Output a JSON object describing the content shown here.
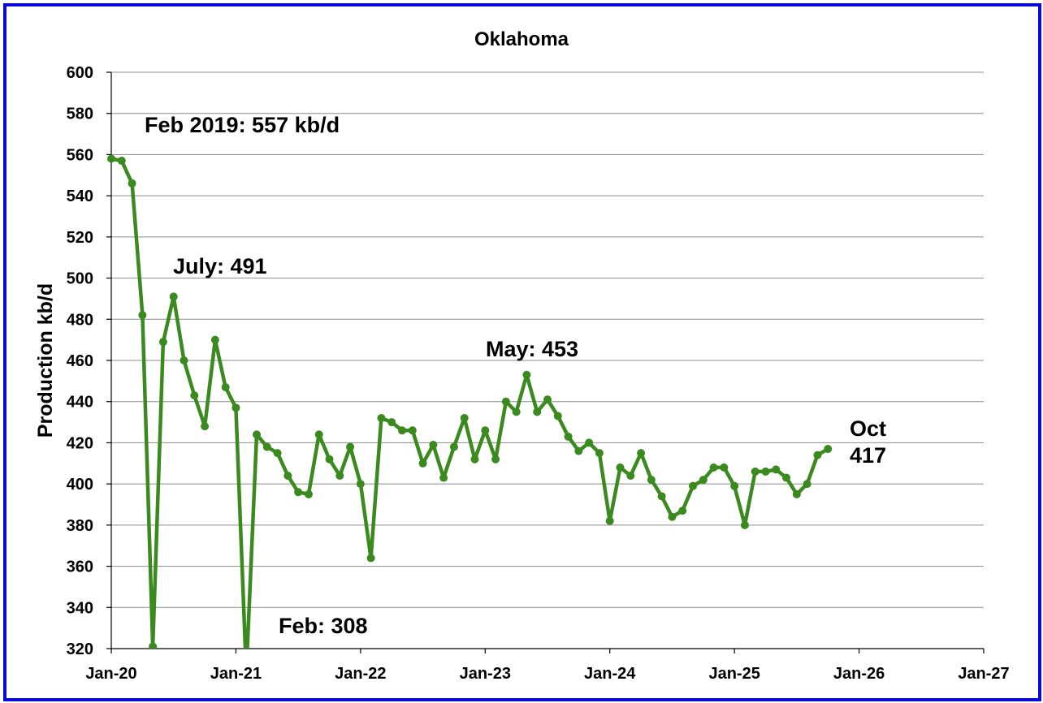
{
  "chart_data": {
    "type": "line",
    "title": "Oklahoma",
    "ylabel": "Production kb/d",
    "xlabel": "",
    "ylim": [
      320,
      600
    ],
    "yticks": [
      320,
      340,
      360,
      380,
      400,
      420,
      440,
      460,
      480,
      500,
      520,
      540,
      560,
      580,
      600
    ],
    "xlim": [
      "2020-01",
      "2027-01"
    ],
    "xticks": [
      {
        "date": "2020-01",
        "label": "Jan-20"
      },
      {
        "date": "2021-01",
        "label": "Jan-21"
      },
      {
        "date": "2022-01",
        "label": "Jan-22"
      },
      {
        "date": "2023-01",
        "label": "Jan-23"
      },
      {
        "date": "2024-01",
        "label": "Jan-24"
      },
      {
        "date": "2025-01",
        "label": "Jan-25"
      },
      {
        "date": "2026-01",
        "label": "Jan-26"
      },
      {
        "date": "2027-01",
        "label": "Jan-27"
      }
    ],
    "grid": "horizontal",
    "line_color": "#3a8a1f",
    "series": [
      {
        "x": [
          "2020-01",
          "2020-02",
          "2020-03",
          "2020-04",
          "2020-05",
          "2020-06",
          "2020-07",
          "2020-08",
          "2020-09",
          "2020-10",
          "2020-11",
          "2020-12",
          "2021-01",
          "2021-02",
          "2021-03",
          "2021-04",
          "2021-05",
          "2021-06",
          "2021-07",
          "2021-08",
          "2021-09",
          "2021-10",
          "2021-11",
          "2021-12",
          "2022-01",
          "2022-02",
          "2022-03",
          "2022-04",
          "2022-05",
          "2022-06",
          "2022-07",
          "2022-08",
          "2022-09",
          "2022-10",
          "2022-11",
          "2022-12",
          "2023-01",
          "2023-02",
          "2023-03",
          "2023-04",
          "2023-05",
          "2023-06",
          "2023-07",
          "2023-08",
          "2023-09",
          "2023-10",
          "2023-11",
          "2023-12",
          "2024-01",
          "2024-02",
          "2024-03",
          "2024-04",
          "2024-05",
          "2024-06",
          "2024-07",
          "2024-08",
          "2024-09",
          "2024-10",
          "2024-11",
          "2024-12",
          "2025-01",
          "2025-02",
          "2025-03",
          "2025-04",
          "2025-05",
          "2025-06",
          "2025-07",
          "2025-08",
          "2025-09",
          "2025-10"
        ],
        "values": [
          558,
          557,
          546,
          482,
          321,
          469,
          491,
          460,
          443,
          428,
          470,
          447,
          437,
          308,
          424,
          418,
          415,
          404,
          396,
          395,
          424,
          412,
          404,
          418,
          400,
          364,
          432,
          430,
          426,
          426,
          410,
          419,
          403,
          418,
          432,
          412,
          426,
          412,
          440,
          435,
          453,
          435,
          441,
          433,
          423,
          416,
          420,
          415,
          382,
          408,
          404,
          415,
          402,
          394,
          384,
          387,
          399,
          402,
          408,
          408,
          399,
          380,
          406,
          406,
          407,
          403,
          395,
          400,
          414,
          417
        ]
      }
    ],
    "annotations": [
      {
        "text": "Feb 2019: 557 kb/d"
      },
      {
        "text": "July: 491"
      },
      {
        "text": "May: 453"
      },
      {
        "text": "Feb: 308"
      },
      {
        "text": "Oct"
      },
      {
        "text": "417"
      }
    ]
  }
}
